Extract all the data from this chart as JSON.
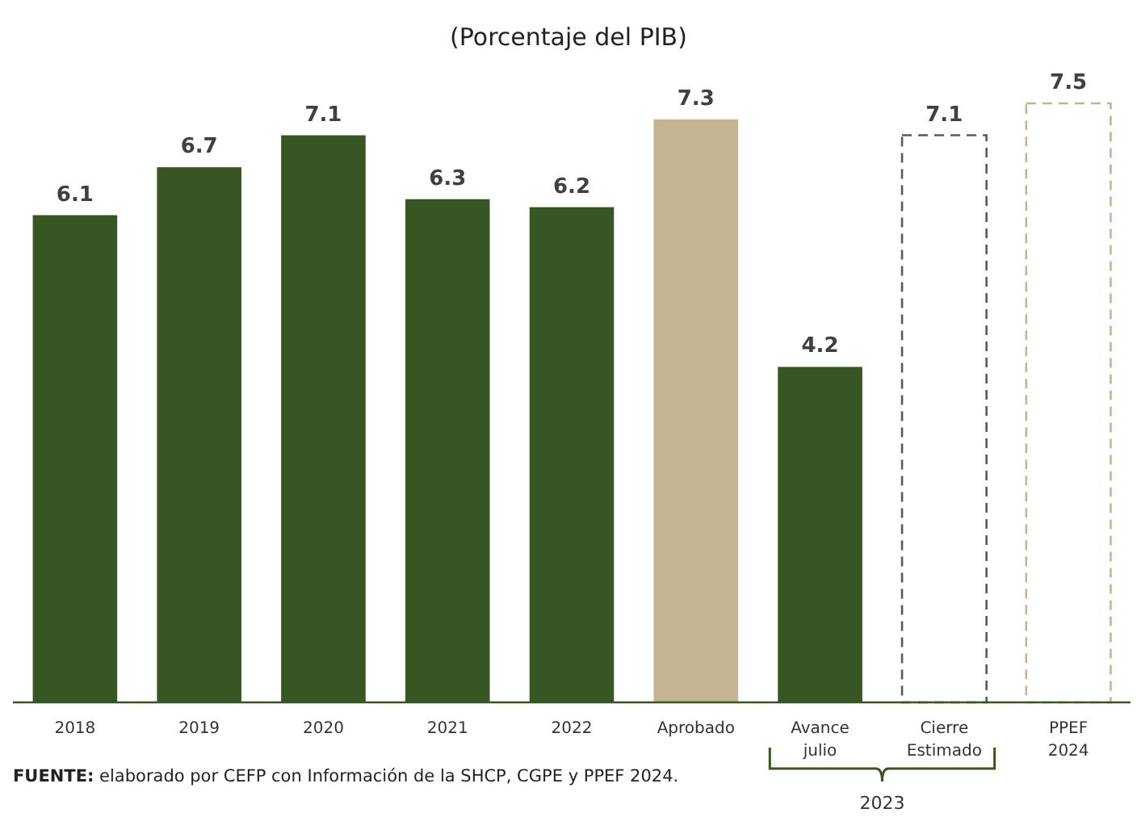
{
  "chart_data": {
    "type": "bar",
    "title": "(Porcentaje del PIB)",
    "categories": [
      "2018",
      "2019",
      "2020",
      "2021",
      "2022",
      "Aprobado",
      "Avance\njulio",
      "Cierre\nEstimado",
      "PPEF\n2024"
    ],
    "series": [
      {
        "values": [
          6.1,
          6.7,
          7.1,
          6.3,
          6.2,
          7.3,
          4.2,
          null,
          null
        ],
        "colors": [
          "#375623",
          "#375623",
          "#375623",
          "#375623",
          "#375623",
          "#c4b494",
          "#375623",
          null,
          null
        ]
      },
      {
        "values": [
          null,
          null,
          null,
          null,
          null,
          null,
          null,
          7.1,
          7.5
        ],
        "colors": [
          null,
          null,
          null,
          null,
          null,
          null,
          null,
          "#595959",
          "#c4b494"
        ],
        "line_style": "dashed"
      }
    ],
    "data_labels": true,
    "annotations": [
      "2023",
      "FUENTE: elaborado por CEFP con Información de la SHCP, CGPE y PPEF 2024."
    ]
  }
}
